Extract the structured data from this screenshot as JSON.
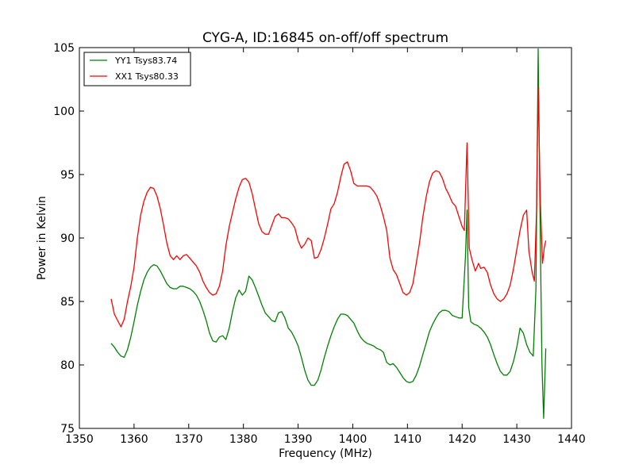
{
  "chart_data": {
    "type": "line",
    "title": "CYG-A, ID:16845 on-off/off spectrum",
    "xlabel": "Frequency (MHz)",
    "ylabel": "Power in Kelvin",
    "xlim": [
      1350,
      1440
    ],
    "ylim": [
      75,
      105
    ],
    "xticks": [
      1350,
      1360,
      1370,
      1380,
      1390,
      1400,
      1410,
      1420,
      1430,
      1440
    ],
    "yticks": [
      75,
      80,
      85,
      90,
      95,
      100,
      105
    ],
    "grid": false,
    "legend": "top-left",
    "series": [
      {
        "name": "YY1 Tsys83.74",
        "color": "#008000",
        "points": [
          [
            1355.8,
            81.7
          ],
          [
            1356.4,
            81.4
          ],
          [
            1357.0,
            81.0
          ],
          [
            1357.6,
            80.7
          ],
          [
            1358.2,
            80.6
          ],
          [
            1358.8,
            81.2
          ],
          [
            1359.4,
            82.2
          ],
          [
            1360.0,
            83.4
          ],
          [
            1360.6,
            84.7
          ],
          [
            1361.2,
            85.8
          ],
          [
            1361.8,
            86.7
          ],
          [
            1362.4,
            87.3
          ],
          [
            1363.0,
            87.7
          ],
          [
            1363.6,
            87.9
          ],
          [
            1364.2,
            87.8
          ],
          [
            1364.8,
            87.4
          ],
          [
            1365.4,
            86.9
          ],
          [
            1366.0,
            86.4
          ],
          [
            1366.6,
            86.1
          ],
          [
            1367.2,
            86.0
          ],
          [
            1367.8,
            86.0
          ],
          [
            1368.4,
            86.2
          ],
          [
            1369.0,
            86.2
          ],
          [
            1369.6,
            86.1
          ],
          [
            1370.2,
            86.0
          ],
          [
            1370.8,
            85.8
          ],
          [
            1371.4,
            85.5
          ],
          [
            1372.0,
            85.0
          ],
          [
            1372.6,
            84.3
          ],
          [
            1373.2,
            83.5
          ],
          [
            1373.8,
            82.5
          ],
          [
            1374.4,
            81.9
          ],
          [
            1375.0,
            81.8
          ],
          [
            1375.6,
            82.2
          ],
          [
            1376.2,
            82.3
          ],
          [
            1376.8,
            82.0
          ],
          [
            1377.4,
            82.9
          ],
          [
            1378.0,
            84.2
          ],
          [
            1378.6,
            85.3
          ],
          [
            1379.2,
            85.9
          ],
          [
            1379.8,
            85.5
          ],
          [
            1380.4,
            85.8
          ],
          [
            1381.0,
            87.0
          ],
          [
            1381.6,
            86.7
          ],
          [
            1382.2,
            86.1
          ],
          [
            1382.8,
            85.4
          ],
          [
            1383.4,
            84.7
          ],
          [
            1384.0,
            84.1
          ],
          [
            1384.6,
            83.8
          ],
          [
            1385.2,
            83.5
          ],
          [
            1385.8,
            83.4
          ],
          [
            1386.4,
            84.1
          ],
          [
            1387.0,
            84.2
          ],
          [
            1387.6,
            83.7
          ],
          [
            1388.2,
            82.9
          ],
          [
            1388.8,
            82.6
          ],
          [
            1389.4,
            82.1
          ],
          [
            1390.0,
            81.5
          ],
          [
            1390.6,
            80.6
          ],
          [
            1391.2,
            79.6
          ],
          [
            1391.8,
            78.8
          ],
          [
            1392.4,
            78.4
          ],
          [
            1393.0,
            78.4
          ],
          [
            1393.6,
            78.8
          ],
          [
            1394.2,
            79.6
          ],
          [
            1394.8,
            80.6
          ],
          [
            1395.4,
            81.5
          ],
          [
            1396.0,
            82.3
          ],
          [
            1396.6,
            83.0
          ],
          [
            1397.2,
            83.6
          ],
          [
            1397.8,
            84.0
          ],
          [
            1398.4,
            84.0
          ],
          [
            1399.0,
            83.9
          ],
          [
            1399.6,
            83.6
          ],
          [
            1400.2,
            83.3
          ],
          [
            1400.8,
            82.7
          ],
          [
            1401.4,
            82.2
          ],
          [
            1402.0,
            81.9
          ],
          [
            1402.6,
            81.7
          ],
          [
            1403.2,
            81.6
          ],
          [
            1403.8,
            81.5
          ],
          [
            1404.4,
            81.3
          ],
          [
            1405.0,
            81.2
          ],
          [
            1405.6,
            81.0
          ],
          [
            1406.2,
            80.2
          ],
          [
            1406.8,
            80.0
          ],
          [
            1407.4,
            80.1
          ],
          [
            1408.0,
            79.8
          ],
          [
            1408.6,
            79.4
          ],
          [
            1409.2,
            79.0
          ],
          [
            1409.8,
            78.7
          ],
          [
            1410.4,
            78.6
          ],
          [
            1411.0,
            78.7
          ],
          [
            1411.6,
            79.2
          ],
          [
            1412.2,
            79.9
          ],
          [
            1412.8,
            80.8
          ],
          [
            1413.4,
            81.7
          ],
          [
            1414.0,
            82.6
          ],
          [
            1414.6,
            83.2
          ],
          [
            1415.2,
            83.7
          ],
          [
            1415.8,
            84.1
          ],
          [
            1416.4,
            84.3
          ],
          [
            1417.0,
            84.3
          ],
          [
            1417.6,
            84.2
          ],
          [
            1418.2,
            83.9
          ],
          [
            1418.8,
            83.8
          ],
          [
            1419.4,
            83.7
          ],
          [
            1420.0,
            83.7
          ],
          [
            1420.6,
            88.5
          ],
          [
            1420.9,
            92.2
          ],
          [
            1421.2,
            84.5
          ],
          [
            1421.6,
            83.4
          ],
          [
            1422.2,
            83.2
          ],
          [
            1422.8,
            83.1
          ],
          [
            1423.4,
            82.9
          ],
          [
            1424.0,
            82.6
          ],
          [
            1424.6,
            82.2
          ],
          [
            1425.2,
            81.6
          ],
          [
            1425.8,
            80.8
          ],
          [
            1426.4,
            80.1
          ],
          [
            1427.0,
            79.5
          ],
          [
            1427.6,
            79.2
          ],
          [
            1428.2,
            79.2
          ],
          [
            1428.8,
            79.5
          ],
          [
            1429.4,
            80.3
          ],
          [
            1430.0,
            81.4
          ],
          [
            1430.6,
            82.9
          ],
          [
            1431.2,
            82.5
          ],
          [
            1431.8,
            81.6
          ],
          [
            1432.4,
            81.0
          ],
          [
            1433.0,
            80.7
          ],
          [
            1433.5,
            86.0
          ],
          [
            1433.9,
            104.9
          ],
          [
            1434.3,
            90.0
          ],
          [
            1434.6,
            80.0
          ],
          [
            1434.9,
            75.8
          ],
          [
            1435.3,
            81.3
          ]
        ]
      },
      {
        "name": "XX1 Tsys80.33",
        "color": "#ff0000",
        "points": [
          [
            1355.8,
            85.2
          ],
          [
            1356.4,
            84.0
          ],
          [
            1357.0,
            83.5
          ],
          [
            1357.6,
            83.0
          ],
          [
            1358.2,
            83.6
          ],
          [
            1358.8,
            85.0
          ],
          [
            1359.4,
            86.2
          ],
          [
            1360.0,
            87.7
          ],
          [
            1360.6,
            90.0
          ],
          [
            1361.2,
            91.8
          ],
          [
            1361.8,
            92.9
          ],
          [
            1362.4,
            93.6
          ],
          [
            1363.0,
            94.0
          ],
          [
            1363.6,
            93.9
          ],
          [
            1364.2,
            93.3
          ],
          [
            1364.8,
            92.3
          ],
          [
            1365.4,
            91.0
          ],
          [
            1366.0,
            89.6
          ],
          [
            1366.6,
            88.6
          ],
          [
            1367.2,
            88.3
          ],
          [
            1367.8,
            88.6
          ],
          [
            1368.4,
            88.3
          ],
          [
            1369.0,
            88.6
          ],
          [
            1369.6,
            88.7
          ],
          [
            1370.2,
            88.4
          ],
          [
            1370.8,
            88.1
          ],
          [
            1371.4,
            87.8
          ],
          [
            1372.0,
            87.3
          ],
          [
            1372.6,
            86.6
          ],
          [
            1373.2,
            86.1
          ],
          [
            1373.8,
            85.7
          ],
          [
            1374.4,
            85.5
          ],
          [
            1375.0,
            85.6
          ],
          [
            1375.6,
            86.2
          ],
          [
            1376.2,
            87.4
          ],
          [
            1376.8,
            89.4
          ],
          [
            1377.4,
            90.9
          ],
          [
            1378.0,
            92.0
          ],
          [
            1378.6,
            93.1
          ],
          [
            1379.2,
            94.0
          ],
          [
            1379.8,
            94.6
          ],
          [
            1380.4,
            94.7
          ],
          [
            1381.0,
            94.4
          ],
          [
            1381.6,
            93.5
          ],
          [
            1382.2,
            92.3
          ],
          [
            1382.8,
            91.1
          ],
          [
            1383.4,
            90.5
          ],
          [
            1384.0,
            90.3
          ],
          [
            1384.6,
            90.3
          ],
          [
            1385.2,
            91.0
          ],
          [
            1385.8,
            91.7
          ],
          [
            1386.4,
            91.9
          ],
          [
            1387.0,
            91.6
          ],
          [
            1387.6,
            91.6
          ],
          [
            1388.2,
            91.5
          ],
          [
            1388.8,
            91.2
          ],
          [
            1389.4,
            90.8
          ],
          [
            1390.0,
            89.8
          ],
          [
            1390.6,
            89.2
          ],
          [
            1391.2,
            89.5
          ],
          [
            1391.8,
            90.0
          ],
          [
            1392.4,
            89.8
          ],
          [
            1393.0,
            88.4
          ],
          [
            1393.6,
            88.5
          ],
          [
            1394.2,
            89.1
          ],
          [
            1394.8,
            90.0
          ],
          [
            1395.4,
            91.1
          ],
          [
            1396.0,
            92.3
          ],
          [
            1396.6,
            92.7
          ],
          [
            1397.2,
            93.6
          ],
          [
            1397.8,
            94.8
          ],
          [
            1398.4,
            95.8
          ],
          [
            1399.0,
            96.0
          ],
          [
            1399.6,
            95.3
          ],
          [
            1400.2,
            94.3
          ],
          [
            1400.8,
            94.1
          ],
          [
            1401.4,
            94.1
          ],
          [
            1402.0,
            94.1
          ],
          [
            1402.6,
            94.1
          ],
          [
            1403.2,
            94.0
          ],
          [
            1403.8,
            93.7
          ],
          [
            1404.4,
            93.3
          ],
          [
            1405.0,
            92.6
          ],
          [
            1405.6,
            91.7
          ],
          [
            1406.2,
            90.6
          ],
          [
            1406.8,
            88.4
          ],
          [
            1407.4,
            87.5
          ],
          [
            1408.0,
            87.1
          ],
          [
            1408.6,
            86.4
          ],
          [
            1409.2,
            85.7
          ],
          [
            1409.8,
            85.5
          ],
          [
            1410.4,
            85.7
          ],
          [
            1411.0,
            86.4
          ],
          [
            1411.6,
            88.0
          ],
          [
            1412.2,
            89.6
          ],
          [
            1412.8,
            91.6
          ],
          [
            1413.4,
            93.2
          ],
          [
            1414.0,
            94.4
          ],
          [
            1414.6,
            95.1
          ],
          [
            1415.2,
            95.3
          ],
          [
            1415.8,
            95.2
          ],
          [
            1416.4,
            94.7
          ],
          [
            1417.0,
            93.9
          ],
          [
            1417.6,
            93.4
          ],
          [
            1418.2,
            92.8
          ],
          [
            1418.8,
            92.5
          ],
          [
            1419.4,
            91.7
          ],
          [
            1420.0,
            90.9
          ],
          [
            1420.4,
            90.6
          ],
          [
            1420.9,
            97.5
          ],
          [
            1421.3,
            89.2
          ],
          [
            1421.8,
            88.3
          ],
          [
            1422.4,
            87.4
          ],
          [
            1423.0,
            88.0
          ],
          [
            1423.4,
            87.6
          ],
          [
            1424.0,
            87.7
          ],
          [
            1424.6,
            87.3
          ],
          [
            1425.2,
            86.3
          ],
          [
            1425.8,
            85.6
          ],
          [
            1426.4,
            85.2
          ],
          [
            1427.0,
            85.0
          ],
          [
            1427.6,
            85.2
          ],
          [
            1428.2,
            85.6
          ],
          [
            1428.8,
            86.3
          ],
          [
            1429.4,
            87.6
          ],
          [
            1430.0,
            89.1
          ],
          [
            1430.6,
            90.6
          ],
          [
            1431.2,
            91.8
          ],
          [
            1431.8,
            92.2
          ],
          [
            1432.2,
            89.0
          ],
          [
            1432.8,
            87.3
          ],
          [
            1433.2,
            86.6
          ],
          [
            1433.6,
            92.0
          ],
          [
            1433.9,
            101.9
          ],
          [
            1434.3,
            93.0
          ],
          [
            1434.7,
            88.0
          ],
          [
            1435.0,
            89.2
          ],
          [
            1435.3,
            89.8
          ]
        ]
      }
    ]
  }
}
